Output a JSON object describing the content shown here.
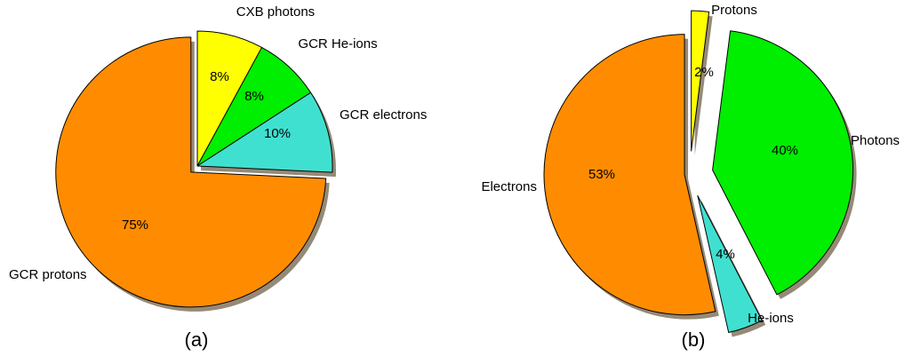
{
  "chart_data": [
    {
      "type": "pie",
      "title": "",
      "panel_label": "(a)",
      "slices": [
        {
          "label": "CXB photons",
          "value": 8,
          "pct_text": "8%",
          "color": "#ffff00"
        },
        {
          "label": "GCR He-ions",
          "value": 8,
          "pct_text": "8%",
          "color": "#00ee00"
        },
        {
          "label": "GCR electrons",
          "value": 10,
          "pct_text": "10%",
          "color": "#40e0d0"
        },
        {
          "label": "GCR protons",
          "value": 75,
          "pct_text": "75%",
          "color": "#ff8c00"
        }
      ],
      "exploded": [
        "GCR protons"
      ],
      "shadow": true
    },
    {
      "type": "pie",
      "title": "",
      "panel_label": "(b)",
      "slices": [
        {
          "label": "Protons",
          "value": 2,
          "pct_text": "2%",
          "color": "#ffff00"
        },
        {
          "label": "Photons",
          "value": 40,
          "pct_text": "40%",
          "color": "#00ee00"
        },
        {
          "label": "He-ions",
          "value": 4,
          "pct_text": "4%",
          "color": "#40e0d0"
        },
        {
          "label": "Electrons",
          "value": 53,
          "pct_text": "53%",
          "color": "#ff8c00"
        }
      ],
      "exploded": [
        "Protons",
        "Photons",
        "He-ions",
        "Electrons"
      ],
      "shadow": true
    }
  ]
}
